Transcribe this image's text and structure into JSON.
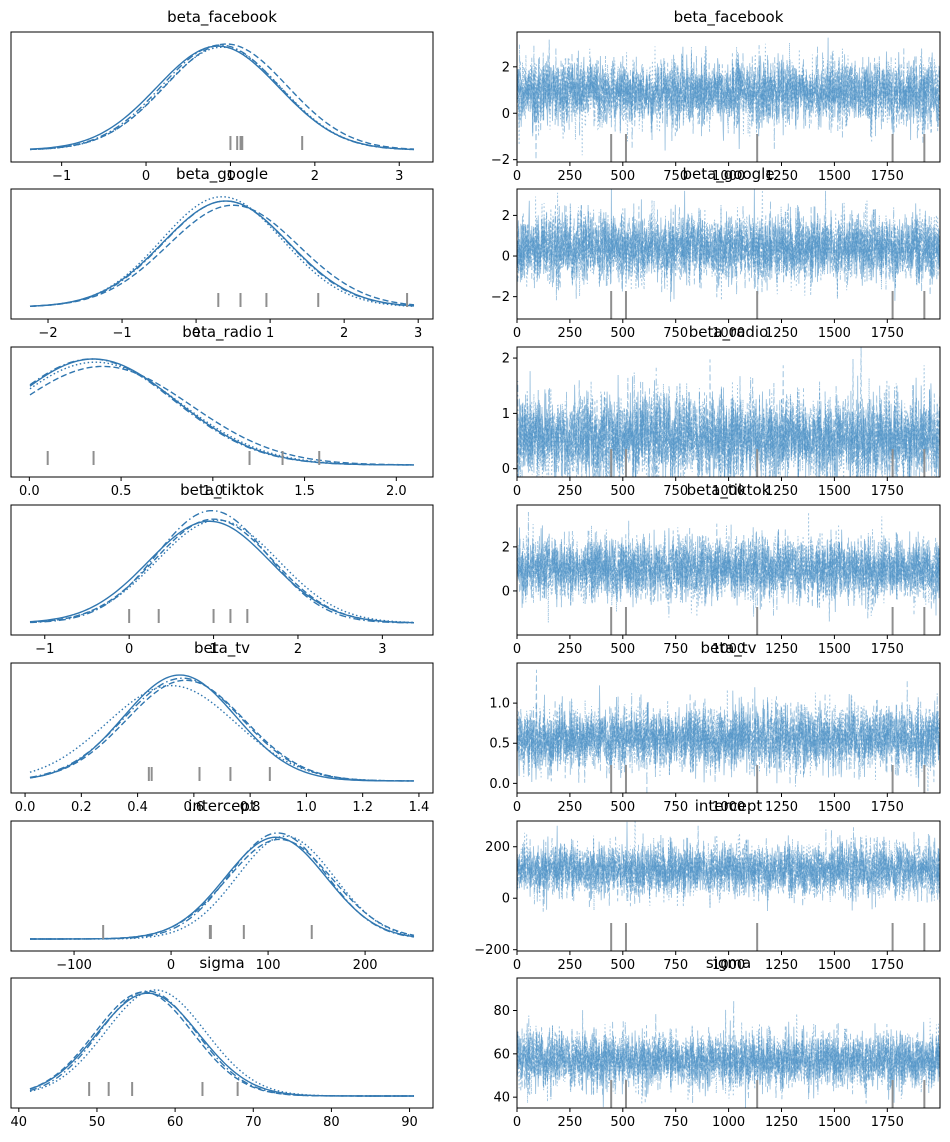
{
  "colors": {
    "density_line": "#3177b0",
    "trace_line": "#4a90c4",
    "rug": "#8f8f8f",
    "axis": "#000000",
    "background": "#ffffff"
  },
  "chart_data": [
    {
      "type": "line",
      "kind": "posterior-density",
      "title": "beta_facebook",
      "xlim": [
        -1.6,
        3.4
      ],
      "x_ticks": [
        -1,
        0,
        1,
        2,
        3
      ],
      "x_tick_labels": [
        "−1",
        "0",
        "1",
        "2",
        "3"
      ],
      "chains": [
        {
          "name": "",
          "mu": 0.85,
          "sigma": 0.72,
          "peak": 0.98,
          "style": "solid"
        },
        {
          "name": "",
          "mu": 0.95,
          "sigma": 0.72,
          "peak": 1.0,
          "style": "dashed"
        },
        {
          "name": "",
          "mu": 0.9,
          "sigma": 0.7,
          "peak": 0.97,
          "style": "dotted"
        },
        {
          "name": "",
          "mu": 0.88,
          "sigma": 0.7,
          "peak": 0.99,
          "style": "dashdot"
        }
      ],
      "rug": [
        1.0,
        1.08,
        1.12,
        1.14,
        1.85
      ]
    },
    {
      "type": "line",
      "kind": "trace",
      "title": "beta_facebook",
      "xlim": [
        0,
        1999
      ],
      "ylim": [
        -2.1,
        3.5
      ],
      "x_ticks": [
        0,
        250,
        500,
        750,
        1000,
        1250,
        1500,
        1750
      ],
      "x_tick_labels": [
        "0",
        "250",
        "500",
        "750",
        "1000",
        "1250",
        "1500",
        "1750"
      ],
      "y_ticks": [
        -2,
        0,
        2
      ],
      "y_tick_labels": [
        "−2",
        "0",
        "2"
      ],
      "center": 0.9,
      "spread": 0.72,
      "divergence_draws": [
        445,
        515,
        1135,
        1775,
        1925
      ]
    },
    {
      "type": "line",
      "kind": "posterior-density",
      "title": "beta_google",
      "xlim": [
        -2.5,
        3.2
      ],
      "x_ticks": [
        -2,
        -1,
        0,
        1,
        2,
        3
      ],
      "x_tick_labels": [
        "−2",
        "−1",
        "0",
        "1",
        "2",
        "3"
      ],
      "chains": [
        {
          "name": "",
          "mu": 0.4,
          "sigma": 0.85,
          "peak": 1.0,
          "style": "solid"
        },
        {
          "name": "",
          "mu": 0.5,
          "sigma": 0.88,
          "peak": 0.96,
          "style": "dashed"
        },
        {
          "name": "",
          "mu": 0.35,
          "sigma": 0.82,
          "peak": 1.04,
          "style": "dotted"
        },
        {
          "name": "",
          "mu": 0.4,
          "sigma": 0.84,
          "peak": 1.0,
          "style": "dashdot"
        }
      ],
      "rug": [
        0.3,
        0.6,
        0.95,
        1.65,
        2.85
      ]
    },
    {
      "type": "line",
      "kind": "trace",
      "title": "beta_google",
      "xlim": [
        0,
        1999
      ],
      "ylim": [
        -3.1,
        3.3
      ],
      "x_ticks": [
        0,
        250,
        500,
        750,
        1000,
        1250,
        1500,
        1750
      ],
      "x_tick_labels": [
        "0",
        "250",
        "500",
        "750",
        "1000",
        "1250",
        "1500",
        "1750"
      ],
      "y_ticks": [
        -2,
        0,
        2
      ],
      "y_tick_labels": [
        "−2",
        "0",
        "2"
      ],
      "center": 0.4,
      "spread": 0.85,
      "divergence_draws": [
        445,
        515,
        1135,
        1775,
        1925
      ]
    },
    {
      "type": "line",
      "kind": "posterior-density",
      "title": "beta_radio",
      "xlim": [
        -0.1,
        2.2
      ],
      "x_ticks": [
        0,
        0.5,
        1.0,
        1.5,
        2.0
      ],
      "x_tick_labels": [
        "0.0",
        "0.5",
        "1.0",
        "1.5",
        "2.0"
      ],
      "chains": [
        {
          "name": "",
          "mu": 0.35,
          "sigma": 0.45,
          "peak": 1.0,
          "style": "solid"
        },
        {
          "name": "",
          "mu": 0.4,
          "sigma": 0.48,
          "peak": 0.93,
          "style": "dashed"
        },
        {
          "name": "",
          "mu": 0.36,
          "sigma": 0.46,
          "peak": 0.97,
          "style": "dotted"
        },
        {
          "name": "",
          "mu": 0.34,
          "sigma": 0.45,
          "peak": 1.0,
          "style": "dashdot"
        }
      ],
      "rug": [
        0.1,
        0.35,
        1.2,
        1.38,
        1.58
      ]
    },
    {
      "type": "line",
      "kind": "trace",
      "title": "beta_radio",
      "xlim": [
        0,
        1999
      ],
      "ylim": [
        -0.15,
        2.2
      ],
      "x_ticks": [
        0,
        250,
        500,
        750,
        1000,
        1250,
        1500,
        1750
      ],
      "x_tick_labels": [
        "0",
        "250",
        "500",
        "750",
        "1000",
        "1250",
        "1500",
        "1750"
      ],
      "y_ticks": [
        0,
        1,
        2
      ],
      "y_tick_labels": [
        "0",
        "1",
        "2"
      ],
      "center": 0.55,
      "spread": 0.4,
      "divergence_draws": [
        445,
        515,
        1135,
        1775,
        1925
      ]
    },
    {
      "type": "line",
      "kind": "posterior-density",
      "title": "beta_tiktok",
      "xlim": [
        -1.4,
        3.6
      ],
      "x_ticks": [
        -1,
        0,
        1,
        2,
        3
      ],
      "x_tick_labels": [
        "−1",
        "0",
        "1",
        "2",
        "3"
      ],
      "chains": [
        {
          "name": "",
          "mu": 0.95,
          "sigma": 0.72,
          "peak": 0.96,
          "style": "solid"
        },
        {
          "name": "",
          "mu": 1.0,
          "sigma": 0.7,
          "peak": 0.98,
          "style": "dashed"
        },
        {
          "name": "",
          "mu": 1.05,
          "sigma": 0.72,
          "peak": 0.97,
          "style": "dotted"
        },
        {
          "name": "",
          "mu": 0.98,
          "sigma": 0.66,
          "peak": 1.06,
          "style": "dashdot"
        }
      ],
      "rug": [
        0.0,
        0.35,
        1.0,
        1.2,
        1.4
      ]
    },
    {
      "type": "line",
      "kind": "trace",
      "title": "beta_tiktok",
      "xlim": [
        0,
        1999
      ],
      "ylim": [
        -2.0,
        3.9
      ],
      "x_ticks": [
        0,
        250,
        500,
        750,
        1000,
        1250,
        1500,
        1750
      ],
      "x_tick_labels": [
        "0",
        "250",
        "500",
        "750",
        "1000",
        "1250",
        "1500",
        "1750"
      ],
      "y_ticks": [
        0,
        2
      ],
      "y_tick_labels": [
        "0",
        "2"
      ],
      "center": 1.0,
      "spread": 0.72,
      "divergence_draws": [
        445,
        515,
        1135,
        1775,
        1925
      ]
    },
    {
      "type": "line",
      "kind": "posterior-density",
      "title": "beta_tv",
      "xlim": [
        -0.05,
        1.45
      ],
      "x_ticks": [
        0,
        0.2,
        0.4,
        0.6,
        0.8,
        1.0,
        1.2,
        1.4
      ],
      "x_tick_labels": [
        "0.0",
        "0.2",
        "0.4",
        "0.6",
        "0.8",
        "1.0",
        "1.2",
        "1.4"
      ],
      "chains": [
        {
          "name": "",
          "mu": 0.55,
          "sigma": 0.2,
          "peak": 1.0,
          "style": "solid"
        },
        {
          "name": "",
          "mu": 0.57,
          "sigma": 0.21,
          "peak": 0.95,
          "style": "dashed"
        },
        {
          "name": "",
          "mu": 0.52,
          "sigma": 0.23,
          "peak": 0.9,
          "style": "dotted"
        },
        {
          "name": "",
          "mu": 0.56,
          "sigma": 0.21,
          "peak": 0.97,
          "style": "dashdot"
        }
      ],
      "rug": [
        0.44,
        0.45,
        0.62,
        0.73,
        0.87
      ]
    },
    {
      "type": "line",
      "kind": "trace",
      "title": "beta_tv",
      "xlim": [
        0,
        1999
      ],
      "ylim": [
        -0.12,
        1.5
      ],
      "x_ticks": [
        0,
        250,
        500,
        750,
        1000,
        1250,
        1500,
        1750
      ],
      "x_tick_labels": [
        "0",
        "250",
        "500",
        "750",
        "1000",
        "1250",
        "1500",
        "1750"
      ],
      "y_ticks": [
        0.0,
        0.5,
        1.0
      ],
      "y_tick_labels": [
        "0.0",
        "0.5",
        "1.0"
      ],
      "center": 0.56,
      "spread": 0.2,
      "divergence_draws": [
        445,
        515,
        1135,
        1775,
        1925
      ]
    },
    {
      "type": "line",
      "kind": "posterior-density",
      "title": "intercept",
      "xlim": [
        -165,
        270
      ],
      "x_ticks": [
        -100,
        0,
        100,
        200
      ],
      "x_tick_labels": [
        "−100",
        "0",
        "100",
        "200"
      ],
      "chains": [
        {
          "name": "",
          "mu": 108,
          "sigma": 52,
          "peak": 0.96,
          "style": "solid"
        },
        {
          "name": "",
          "mu": 112,
          "sigma": 54,
          "peak": 0.94,
          "style": "dashed"
        },
        {
          "name": "",
          "mu": 118,
          "sigma": 50,
          "peak": 0.97,
          "style": "dotted"
        },
        {
          "name": "",
          "mu": 110,
          "sigma": 50,
          "peak": 1.0,
          "style": "dashdot"
        }
      ],
      "rug": [
        -70,
        40,
        41,
        75,
        145
      ]
    },
    {
      "type": "line",
      "kind": "trace",
      "title": "intercept",
      "xlim": [
        0,
        1999
      ],
      "ylim": [
        -205,
        300
      ],
      "x_ticks": [
        0,
        250,
        500,
        750,
        1000,
        1250,
        1500,
        1750
      ],
      "x_tick_labels": [
        "0",
        "250",
        "500",
        "750",
        "1000",
        "1250",
        "1500",
        "1750"
      ],
      "y_ticks": [
        -200,
        0,
        200
      ],
      "y_tick_labels": [
        "−200",
        "0",
        "200"
      ],
      "center": 110,
      "spread": 52,
      "divergence_draws": [
        445,
        515,
        1135,
        1775,
        1925
      ]
    },
    {
      "type": "line",
      "kind": "posterior-density",
      "title": "sigma",
      "xlim": [
        39,
        93
      ],
      "x_ticks": [
        40,
        50,
        60,
        70,
        80,
        90
      ],
      "x_tick_labels": [
        "40",
        "50",
        "60",
        "70",
        "80",
        "90"
      ],
      "chains": [
        {
          "name": "",
          "mu": 56.5,
          "sigma": 6.5,
          "peak": 0.97,
          "style": "solid"
        },
        {
          "name": "",
          "mu": 56.0,
          "sigma": 6.3,
          "peak": 0.98,
          "style": "dashed"
        },
        {
          "name": "",
          "mu": 57.5,
          "sigma": 6.4,
          "peak": 1.0,
          "style": "dotted"
        },
        {
          "name": "",
          "mu": 56.5,
          "sigma": 6.2,
          "peak": 0.99,
          "style": "dashdot"
        }
      ],
      "rug": [
        49,
        51.5,
        54.5,
        63.5,
        68
      ]
    },
    {
      "type": "line",
      "kind": "trace",
      "title": "sigma",
      "xlim": [
        0,
        1999
      ],
      "ylim": [
        35,
        95
      ],
      "x_ticks": [
        0,
        250,
        500,
        750,
        1000,
        1250,
        1500,
        1750
      ],
      "x_tick_labels": [
        "0",
        "250",
        "500",
        "750",
        "1000",
        "1250",
        "1500",
        "1750"
      ],
      "y_ticks": [
        40,
        60,
        80
      ],
      "y_tick_labels": [
        "40",
        "60",
        "80"
      ],
      "center": 57,
      "spread": 6.5,
      "divergence_draws": [
        445,
        515,
        1135,
        1775,
        1925
      ]
    }
  ]
}
